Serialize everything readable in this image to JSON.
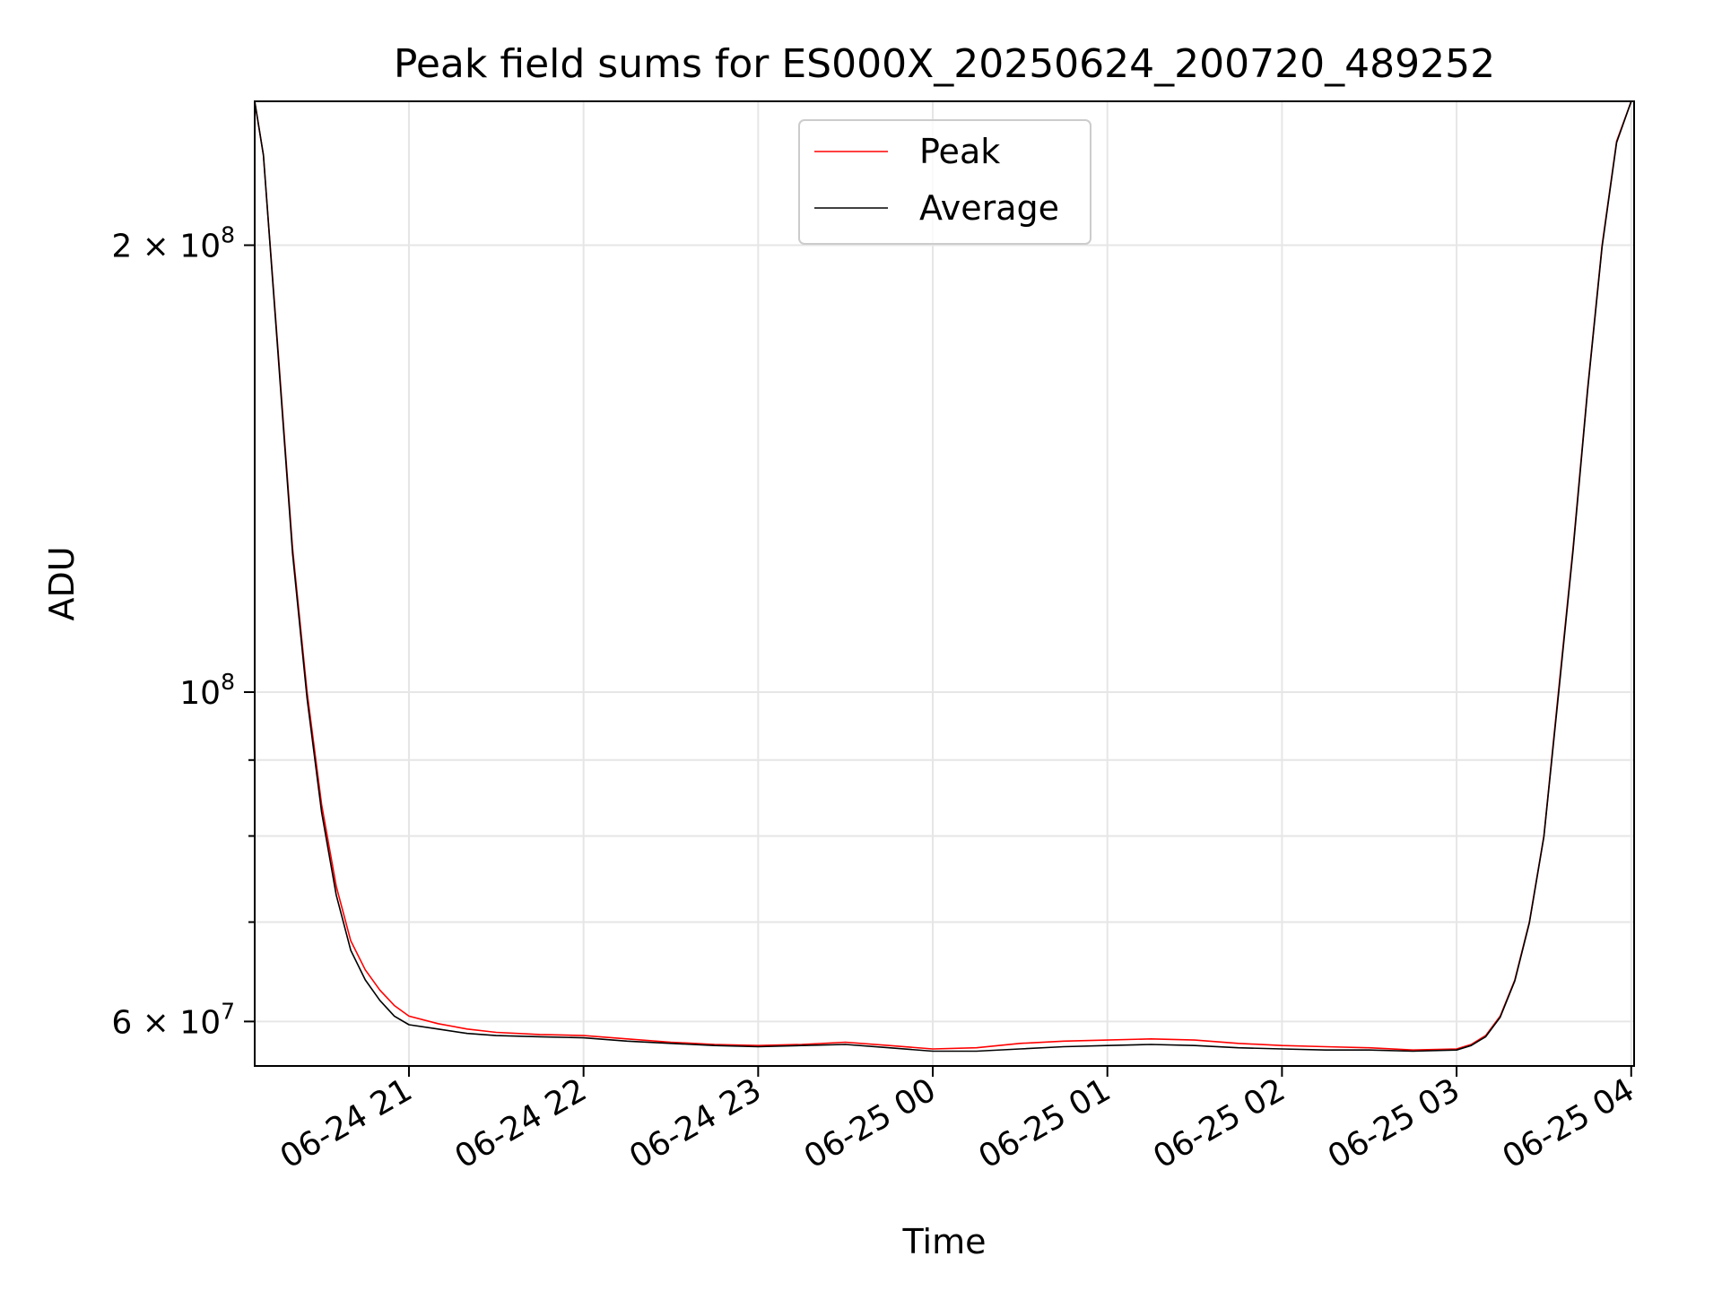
{
  "chart_data": {
    "type": "line",
    "title": "Peak field sums for ES000X_20250624_200720_489252",
    "xlabel": "Time",
    "ylabel": "ADU",
    "yscale": "log",
    "ylim": [
      56000000,
      250000000
    ],
    "xlim": [
      "2025-06-24T20:07:00",
      "2025-06-25T04:01:00"
    ],
    "grid": true,
    "legend_position": "top-center",
    "x_ticks": [
      {
        "value": "2025-06-24T21:00:00",
        "label": "06-24 21"
      },
      {
        "value": "2025-06-24T22:00:00",
        "label": "06-24 22"
      },
      {
        "value": "2025-06-24T23:00:00",
        "label": "06-24 23"
      },
      {
        "value": "2025-06-25T00:00:00",
        "label": "06-25 00"
      },
      {
        "value": "2025-06-25T01:00:00",
        "label": "06-25 01"
      },
      {
        "value": "2025-06-25T02:00:00",
        "label": "06-25 02"
      },
      {
        "value": "2025-06-25T03:00:00",
        "label": "06-25 03"
      },
      {
        "value": "2025-06-25T04:00:00",
        "label": "06-25 04"
      }
    ],
    "y_ticks": [
      {
        "value": 60000000,
        "base": "6 × 10",
        "exp": "7"
      },
      {
        "value": 100000000,
        "base": "10",
        "exp": "8"
      },
      {
        "value": 200000000,
        "base": "2 × 10",
        "exp": "8"
      }
    ],
    "y_minor_ticks": [
      70000000,
      80000000,
      90000000
    ],
    "series": [
      {
        "name": "Peak",
        "color": "#ff0000",
        "x": [
          "2025-06-24T20:07:00",
          "2025-06-24T20:10:00",
          "2025-06-24T20:15:00",
          "2025-06-24T20:20:00",
          "2025-06-24T20:25:00",
          "2025-06-24T20:30:00",
          "2025-06-24T20:35:00",
          "2025-06-24T20:40:00",
          "2025-06-24T20:45:00",
          "2025-06-24T20:50:00",
          "2025-06-24T20:55:00",
          "2025-06-24T21:00:00",
          "2025-06-24T21:10:00",
          "2025-06-24T21:20:00",
          "2025-06-24T21:30:00",
          "2025-06-24T21:45:00",
          "2025-06-24T22:00:00",
          "2025-06-24T22:15:00",
          "2025-06-24T22:30:00",
          "2025-06-24T22:45:00",
          "2025-06-24T23:00:00",
          "2025-06-24T23:15:00",
          "2025-06-24T23:30:00",
          "2025-06-24T23:45:00",
          "2025-06-25T00:00:00",
          "2025-06-25T00:15:00",
          "2025-06-25T00:30:00",
          "2025-06-25T00:45:00",
          "2025-06-25T01:00:00",
          "2025-06-25T01:15:00",
          "2025-06-25T01:30:00",
          "2025-06-25T01:45:00",
          "2025-06-25T02:00:00",
          "2025-06-25T02:15:00",
          "2025-06-25T02:30:00",
          "2025-06-25T02:45:00",
          "2025-06-25T03:00:00",
          "2025-06-25T03:05:00",
          "2025-06-25T03:10:00",
          "2025-06-25T03:15:00",
          "2025-06-25T03:20:00",
          "2025-06-25T03:25:00",
          "2025-06-25T03:30:00",
          "2025-06-25T03:35:00",
          "2025-06-25T03:40:00",
          "2025-06-25T03:45:00",
          "2025-06-25T03:50:00",
          "2025-06-25T03:55:00",
          "2025-06-25T04:00:00"
        ],
        "y": [
          250000000,
          230000000,
          170000000,
          125000000,
          100000000,
          84000000,
          74000000,
          68000000,
          65000000,
          63000000,
          61500000,
          60500000,
          59800000,
          59300000,
          59000000,
          58800000,
          58700000,
          58400000,
          58100000,
          57900000,
          57800000,
          57900000,
          58100000,
          57800000,
          57500000,
          57600000,
          58000000,
          58200000,
          58300000,
          58400000,
          58300000,
          58000000,
          57800000,
          57700000,
          57600000,
          57400000,
          57500000,
          57900000,
          58700000,
          60500000,
          64000000,
          70000000,
          80000000,
          100000000,
          125000000,
          160000000,
          200000000,
          235000000,
          250000000
        ]
      },
      {
        "name": "Average",
        "color": "#000000",
        "x": [
          "2025-06-24T20:07:00",
          "2025-06-24T20:10:00",
          "2025-06-24T20:15:00",
          "2025-06-24T20:20:00",
          "2025-06-24T20:25:00",
          "2025-06-24T20:30:00",
          "2025-06-24T20:35:00",
          "2025-06-24T20:40:00",
          "2025-06-24T20:45:00",
          "2025-06-24T20:50:00",
          "2025-06-24T20:55:00",
          "2025-06-24T21:00:00",
          "2025-06-24T21:10:00",
          "2025-06-24T21:20:00",
          "2025-06-24T21:30:00",
          "2025-06-24T21:45:00",
          "2025-06-24T22:00:00",
          "2025-06-24T22:15:00",
          "2025-06-24T22:30:00",
          "2025-06-24T22:45:00",
          "2025-06-24T23:00:00",
          "2025-06-24T23:15:00",
          "2025-06-24T23:30:00",
          "2025-06-24T23:45:00",
          "2025-06-25T00:00:00",
          "2025-06-25T00:15:00",
          "2025-06-25T00:30:00",
          "2025-06-25T00:45:00",
          "2025-06-25T01:00:00",
          "2025-06-25T01:15:00",
          "2025-06-25T01:30:00",
          "2025-06-25T01:45:00",
          "2025-06-25T02:00:00",
          "2025-06-25T02:15:00",
          "2025-06-25T02:30:00",
          "2025-06-25T02:45:00",
          "2025-06-25T03:00:00",
          "2025-06-25T03:05:00",
          "2025-06-25T03:10:00",
          "2025-06-25T03:15:00",
          "2025-06-25T03:20:00",
          "2025-06-25T03:25:00",
          "2025-06-25T03:30:00",
          "2025-06-25T03:35:00",
          "2025-06-25T03:40:00",
          "2025-06-25T03:45:00",
          "2025-06-25T03:50:00",
          "2025-06-25T03:55:00",
          "2025-06-25T04:00:00"
        ],
        "y": [
          250000000,
          230000000,
          169000000,
          124000000,
          99000000,
          83000000,
          73000000,
          67000000,
          64000000,
          62000000,
          60500000,
          59700000,
          59300000,
          58900000,
          58700000,
          58600000,
          58500000,
          58200000,
          58000000,
          57800000,
          57700000,
          57800000,
          57900000,
          57600000,
          57300000,
          57300000,
          57500000,
          57700000,
          57800000,
          57900000,
          57800000,
          57600000,
          57500000,
          57400000,
          57400000,
          57300000,
          57400000,
          57800000,
          58600000,
          60400000,
          63900000,
          69900000,
          79900000,
          99500000,
          124500000,
          159500000,
          199500000,
          234500000,
          250000000
        ]
      }
    ]
  }
}
